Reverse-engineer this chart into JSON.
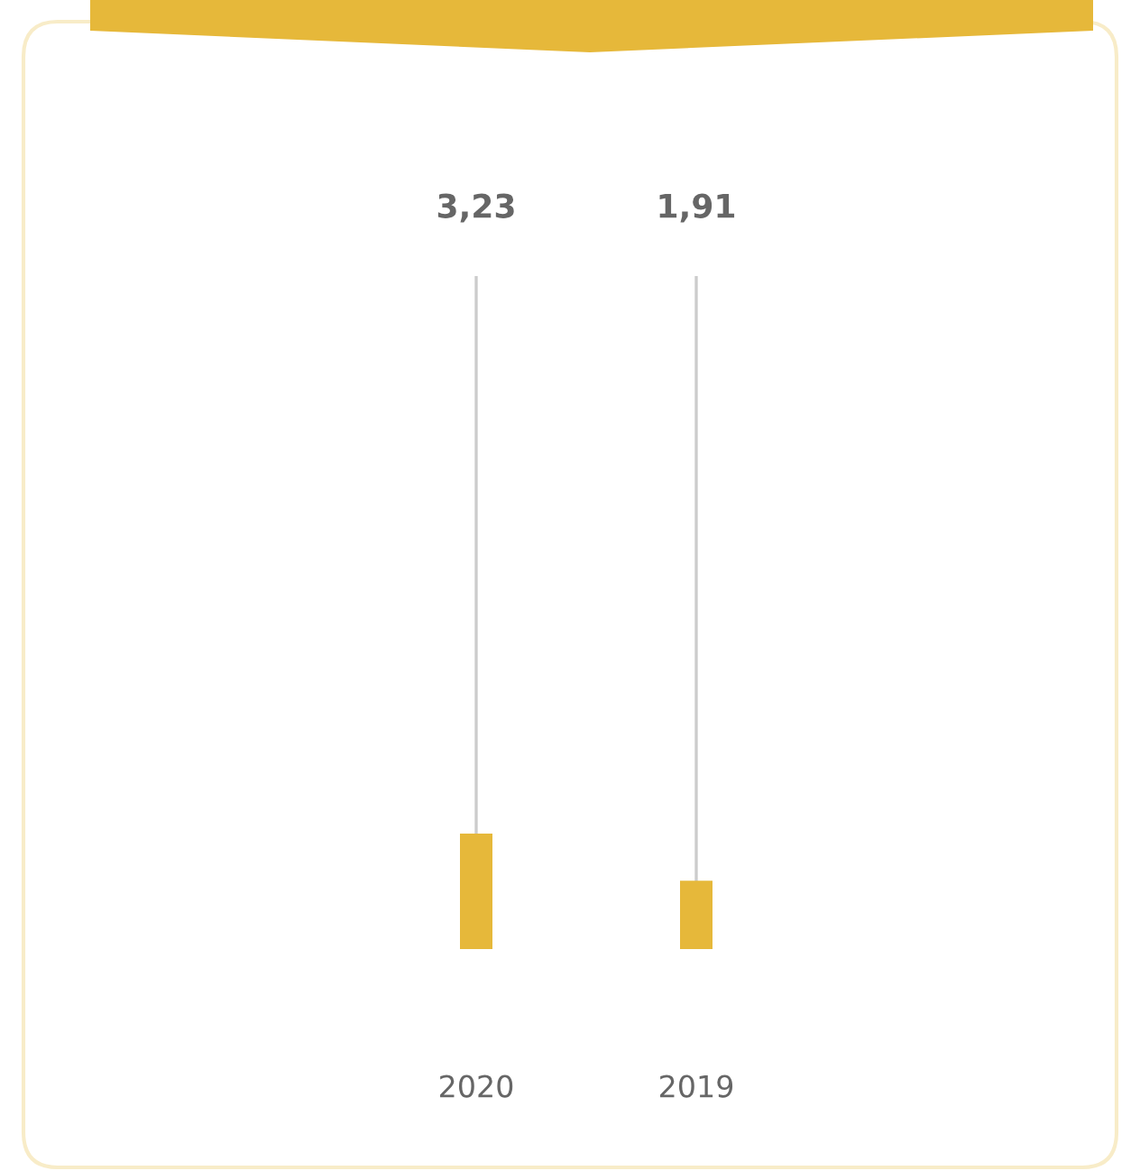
{
  "chart_data": {
    "type": "bar",
    "categories": [
      "2020",
      "2019"
    ],
    "values": [
      3.23,
      1.91
    ],
    "value_labels": [
      "3,23",
      "1,91"
    ],
    "color": "#e6b83a",
    "grid": "x",
    "legend": false
  }
}
